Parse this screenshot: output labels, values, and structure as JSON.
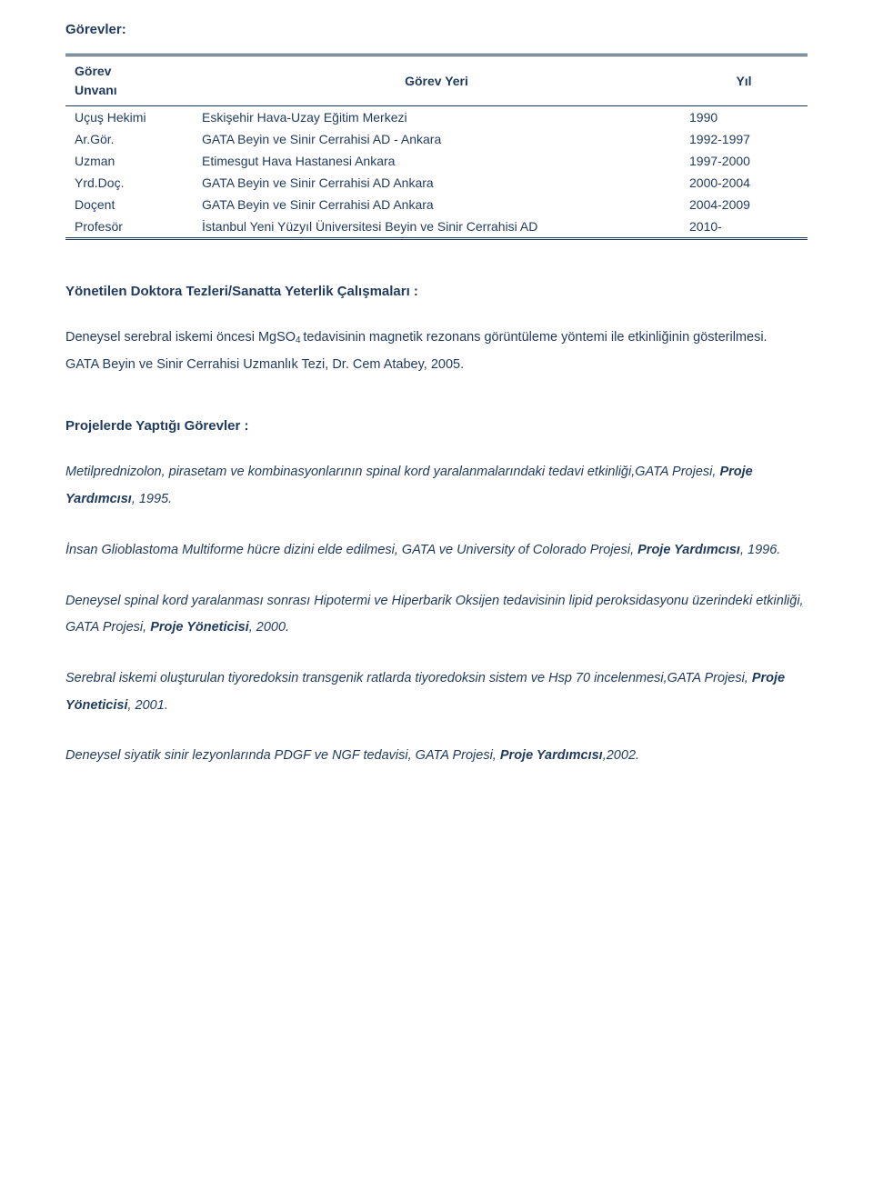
{
  "colors": {
    "text": "#1f3a5f",
    "background": "#ffffff",
    "tableBorder": "#1f3a5f"
  },
  "typography": {
    "family": "Verdana, Geneva, sans-serif",
    "title_size_pt": 15,
    "body_size_pt": 14.5,
    "line_height": 2.05
  },
  "gorevler": {
    "heading": "Görevler:",
    "columns": {
      "col1_line1": "Görev",
      "col1_line2": "Unvanı",
      "col2": "Görev Yeri",
      "col3": "Yıl"
    },
    "rows": [
      {
        "title": "Uçuş Hekimi",
        "place": "Eskişehir Hava-Uzay Eğitim Merkezi",
        "year": "1990"
      },
      {
        "title": "Ar.Gör.",
        "place": "GATA Beyin ve Sinir Cerrahisi AD - Ankara",
        "year": "1992-1997"
      },
      {
        "title": "Uzman",
        "place": "Etimesgut Hava Hastanesi Ankara",
        "year": "1997-2000"
      },
      {
        "title": "Yrd.Doç.",
        "place": "GATA Beyin ve Sinir Cerrahisi AD Ankara",
        "year": "2000-2004"
      },
      {
        "title": "Doçent",
        "place": "GATA Beyin ve Sinir Cerrahisi AD Ankara",
        "year": "2004-2009"
      },
      {
        "title": "Profesör",
        "place": "İstanbul Yeni Yüzyıl Üniversitesi Beyin ve Sinir Cerrahisi AD",
        "year": "2010-"
      }
    ]
  },
  "tezler": {
    "heading": "Yönetilen Doktora Tezleri/Sanatta Yeterlik Çalışmaları :",
    "p1a": "Deneysel serebral iskemi öncesi MgSO",
    "p1sub": "4 ",
    "p1b": "tedavisinin magnetik rezonans görüntüleme yöntemi ile etkinliğinin gösterilmesi.",
    "p2": "GATA Beyin ve Sinir Cerrahisi Uzmanlık Tezi, Dr. Cem Atabey, 2005."
  },
  "projeler": {
    "heading": "Projelerde Yaptığı Görevler :",
    "items": [
      {
        "lead": "Metilprednizolon, pirasetam ve kombinasyonlarının spinal kord yaralanmalarındaki tedavi etkinliği,GATA Projesi, ",
        "role": "Proje Yardımcısı",
        "tail": ", 1995."
      },
      {
        "lead": "İnsan Glioblastoma Multiforme hücre dizini elde edilmesi, GATA ve University of Colorado Projesi, ",
        "role": "Proje Yardımcısı",
        "tail": ", 1996."
      },
      {
        "lead": "Deneysel spinal kord yaralanması sonrası Hipotermi ve Hiperbarik Oksijen tedavisinin lipid peroksidasyonu üzerindeki etkinliği, GATA Projesi,  ",
        "role": "Proje Yöneticisi",
        "tail": ", 2000."
      },
      {
        "lead": "Serebral iskemi oluşturulan tiyoredoksin transgenik ratlarda tiyoredoksin sistem ve Hsp 70 incelenmesi,GATA Projesi, ",
        "role": "Proje Yöneticisi",
        "tail": ", 2001."
      },
      {
        "lead": "Deneysel siyatik sinir lezyonlarında PDGF ve NGF tedavisi, GATA Projesi, ",
        "role": "Proje Yardımcısı",
        "tail": ",2002."
      }
    ]
  }
}
